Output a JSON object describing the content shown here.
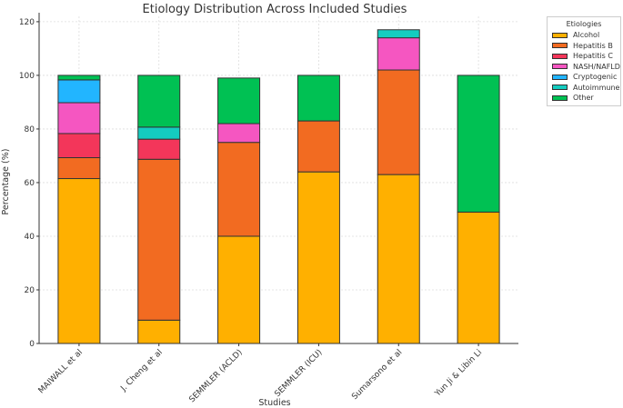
{
  "chart_data": {
    "type": "bar",
    "stacked": true,
    "title": "Etiology Distribution Across Included Studies",
    "xlabel": "Studies",
    "ylabel": "Percentage (%)",
    "ylim": [
      0,
      122
    ],
    "yticks": [
      0,
      20,
      40,
      60,
      80,
      100,
      120
    ],
    "grid": true,
    "legend_title": "Etiologies",
    "legend_position": "outside-top-right",
    "categories": [
      "MAIWALL et al",
      "J. Cheng et al",
      "SEMMLER (ACLD)",
      "SEMMLER (ICU)",
      "Sumarsono et al",
      "Yun Ji & Libin Li"
    ],
    "series": [
      {
        "name": "Alcohol",
        "color": "#FFB000",
        "values": [
          61.5,
          8.7,
          40,
          64,
          63,
          49
        ]
      },
      {
        "name": "Hepatitis B",
        "color": "#F26B21",
        "values": [
          7.8,
          60,
          35,
          19,
          39,
          0
        ]
      },
      {
        "name": "Hepatitis C",
        "color": "#F3365A",
        "values": [
          9,
          7.5,
          0,
          0,
          0,
          0
        ]
      },
      {
        "name": "NASH/NAFLD",
        "color": "#F556C1",
        "values": [
          11.5,
          0,
          7,
          0,
          12,
          0
        ]
      },
      {
        "name": "Cryptogenic",
        "color": "#22B5FF",
        "values": [
          8.5,
          0,
          0,
          0,
          0,
          0
        ]
      },
      {
        "name": "Autoimmune",
        "color": "#14CCC0",
        "values": [
          0,
          4.5,
          0,
          0,
          3,
          0
        ]
      },
      {
        "name": "Other",
        "color": "#00C153",
        "values": [
          1.7,
          19.3,
          17,
          17,
          0,
          51
        ]
      }
    ]
  }
}
